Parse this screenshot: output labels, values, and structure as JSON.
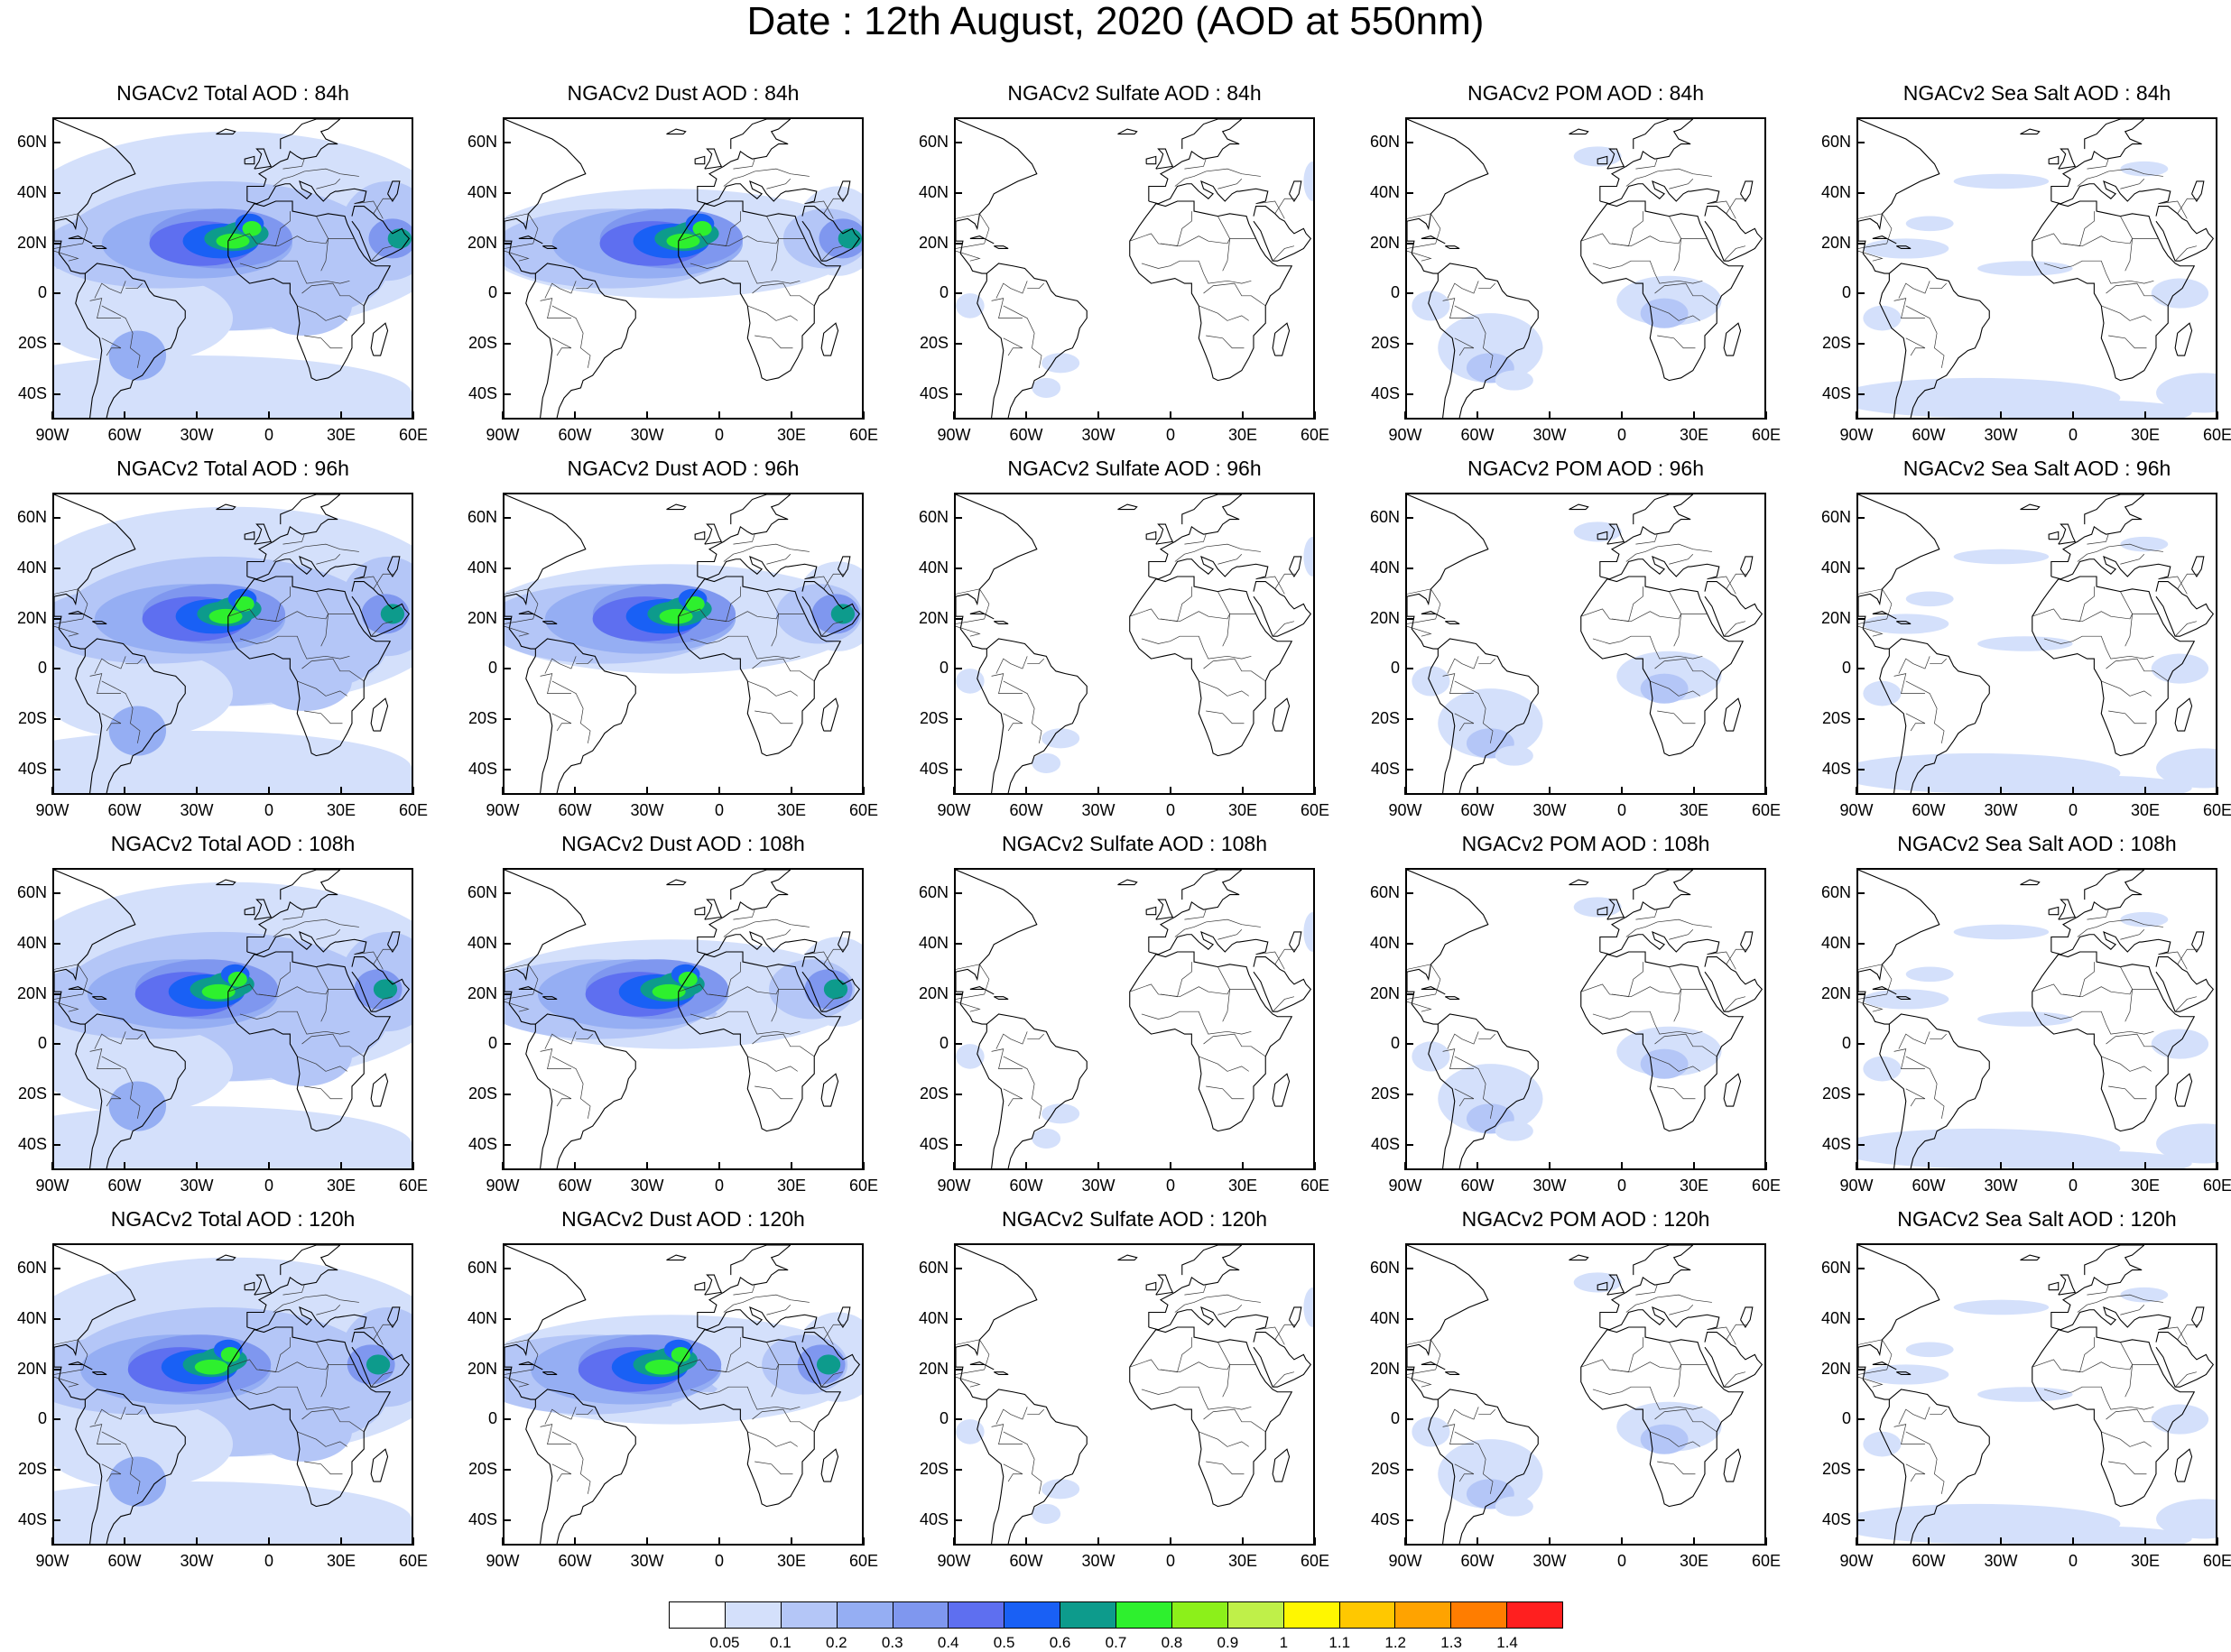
{
  "title": "Date : 12th August, 2020 (AOD at 550nm)",
  "rows": [
    "84h",
    "96h",
    "108h",
    "120h"
  ],
  "panel_titles": [
    [
      "NGACv2 Total AOD : 84h",
      "NGACv2 Dust AOD : 84h",
      "NGACv2 Sulfate AOD : 84h",
      "NGACv2 POM AOD : 84h",
      "NGACv2 Sea Salt AOD : 84h"
    ],
    [
      "NGACv2 Total AOD : 96h",
      "NGACv2 Dust AOD : 96h",
      "NGACv2 Sulfate AOD : 96h",
      "NGACv2 POM AOD : 96h",
      "NGACv2 Sea Salt AOD : 96h"
    ],
    [
      "NGACv2 Total AOD : 108h",
      "NGACv2 Dust AOD : 108h",
      "NGACv2 Sulfate AOD : 108h",
      "NGACv2 POM AOD : 108h",
      "NGACv2 Sea Salt AOD : 108h"
    ],
    [
      "NGACv2 Total AOD : 120h",
      "NGACv2 Dust AOD : 120h",
      "NGACv2 Sulfate AOD : 120h",
      "NGACv2 POM AOD : 120h",
      "NGACv2 Sea Salt  AOD : 120h"
    ]
  ],
  "species": [
    "total",
    "dust",
    "sulfate",
    "pom",
    "seasalt"
  ],
  "map_extent": {
    "lon": [
      -90,
      60
    ],
    "lat": [
      -50,
      70
    ]
  },
  "lon_ticks": [
    -90,
    -60,
    -30,
    0,
    30,
    60
  ],
  "lon_labels": [
    "90W",
    "60W",
    "30W",
    "0",
    "30E",
    "60E"
  ],
  "lat_ticks": [
    60,
    40,
    20,
    0,
    -20,
    -40
  ],
  "lat_labels": [
    "60N",
    "40N",
    "20N",
    "0",
    "20S",
    "40S"
  ],
  "colorbar": {
    "levels": [
      "0.05",
      "0.1",
      "0.2",
      "0.3",
      "0.4",
      "0.5",
      "0.6",
      "0.7",
      "0.8",
      "0.9",
      "1",
      "1.1",
      "1.2",
      "1.3",
      "1.4"
    ],
    "colors": [
      "#ffffff",
      "#d4e0fb",
      "#b4c6f7",
      "#95aef3",
      "#7f97ef",
      "#5e6ff0",
      "#1960f5",
      "#0d9b8c",
      "#2ef02e",
      "#8cf01a",
      "#bff049",
      "#fff700",
      "#ffc800",
      "#ffa300",
      "#ff7d00",
      "#ff1f1f"
    ]
  }
}
